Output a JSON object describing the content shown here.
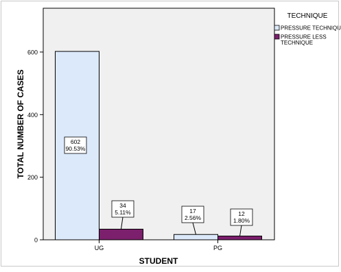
{
  "chart_data": {
    "type": "bar",
    "xlabel": "STUDENT",
    "ylabel": "TOTAL NUMBER OF CASES",
    "ylim": [
      0,
      740
    ],
    "yticks": [
      0,
      200,
      400,
      600
    ],
    "categories": [
      "UG",
      "PG"
    ],
    "legend": {
      "title": "TECHNIQUE",
      "placement": "right"
    },
    "series": [
      {
        "name": "PRESSURE TECHNIQU",
        "color": "#dbe9fb",
        "values": [
          602,
          17
        ],
        "labels": [
          [
            "602",
            "90.53%"
          ],
          [
            "17",
            "2.56%"
          ]
        ]
      },
      {
        "name": "PRESSURE LESS TECHNIQUE",
        "color": "#7c1f6d",
        "values": [
          34,
          12
        ],
        "labels": [
          [
            "34",
            "5.11%"
          ],
          [
            "12",
            "1.80%"
          ]
        ]
      }
    ],
    "grid": false
  }
}
